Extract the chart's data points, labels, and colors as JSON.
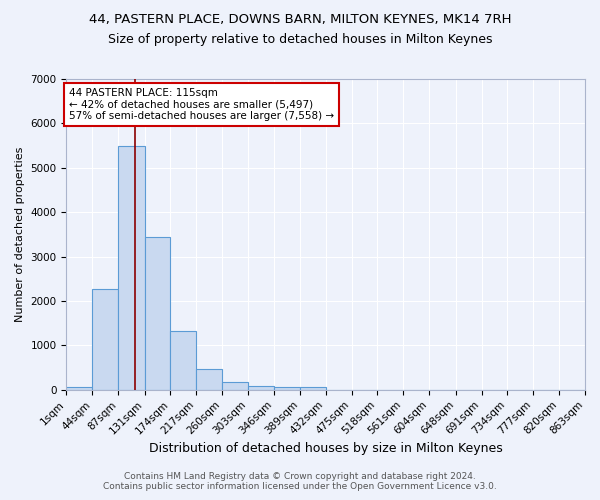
{
  "title1": "44, PASTERN PLACE, DOWNS BARN, MILTON KEYNES, MK14 7RH",
  "title2": "Size of property relative to detached houses in Milton Keynes",
  "xlabel": "Distribution of detached houses by size in Milton Keynes",
  "ylabel": "Number of detached properties",
  "footnote1": "Contains HM Land Registry data © Crown copyright and database right 2024.",
  "footnote2": "Contains public sector information licensed under the Open Government Licence v3.0.",
  "annotation_line1": "44 PASTERN PLACE: 115sqm",
  "annotation_line2": "← 42% of detached houses are smaller (5,497)",
  "annotation_line3": "57% of semi-detached houses are larger (7,558) →",
  "bar_edges": [
    1,
    44,
    87,
    131,
    174,
    217,
    260,
    303,
    346,
    389,
    432,
    475,
    518,
    561,
    604,
    648,
    691,
    734,
    777,
    820,
    863
  ],
  "bar_heights": [
    75,
    2280,
    5500,
    3440,
    1330,
    460,
    185,
    95,
    65,
    60,
    0,
    0,
    0,
    0,
    0,
    0,
    0,
    0,
    0,
    0
  ],
  "tick_labels": [
    "1sqm",
    "44sqm",
    "87sqm",
    "131sqm",
    "174sqm",
    "217sqm",
    "260sqm",
    "303sqm",
    "346sqm",
    "389sqm",
    "432sqm",
    "475sqm",
    "518sqm",
    "561sqm",
    "604sqm",
    "648sqm",
    "691sqm",
    "734sqm",
    "777sqm",
    "820sqm",
    "863sqm"
  ],
  "bar_facecolor": "#c9d9f0",
  "bar_edgecolor": "#5b9bd5",
  "vline_x": 115,
  "vline_color": "#8b0000",
  "annotation_box_edgecolor": "#cc0000",
  "annotation_box_facecolor": "#ffffff",
  "background_color": "#eef2fb",
  "ylim": [
    0,
    7000
  ],
  "xlim": [
    1,
    863
  ],
  "title1_fontsize": 9.5,
  "title2_fontsize": 9,
  "xlabel_fontsize": 9,
  "ylabel_fontsize": 8,
  "tick_fontsize": 7.5,
  "annotation_fontsize": 7.5,
  "footnote_fontsize": 6.5
}
